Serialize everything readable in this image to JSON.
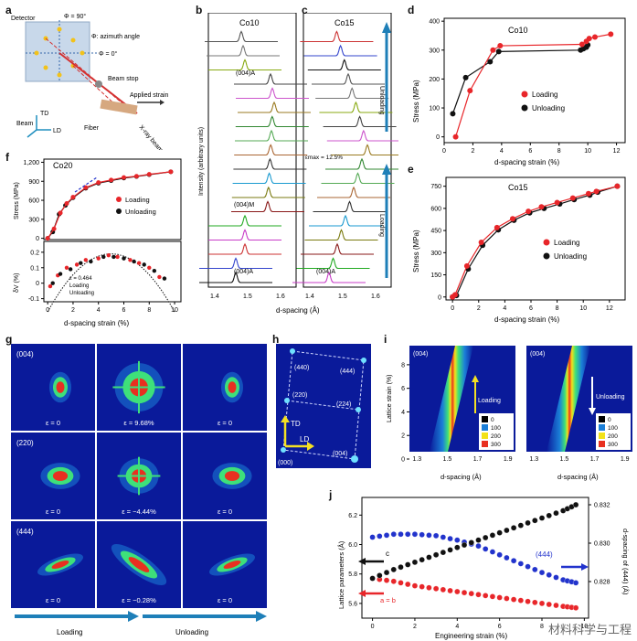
{
  "panel_labels": [
    "a",
    "b",
    "c",
    "d",
    "e",
    "f",
    "g",
    "h",
    "i",
    "j"
  ],
  "panel_a": {
    "detector": "Detector",
    "phi90": "Φ = 90°",
    "phi0": "Φ = 0°",
    "phi_desc": "Φ: azimuth angle",
    "beam_stop": "Beam stop",
    "applied_strain": "Applied strain",
    "xray": "X-ray beam",
    "fiber": "Fiber",
    "beam": "Beam",
    "td": "TD",
    "ld": "LD"
  },
  "panel_b": {
    "title": "Co10",
    "peak_top": "(004)A",
    "peak_mid": "(004)M",
    "peak_bot": "(004)A",
    "ylabel": "Intensity (arbitrary units)",
    "xticks": [
      "1.4",
      "1.5",
      "1.6"
    ]
  },
  "panel_c": {
    "title": "Co15",
    "emax": "εmax = 12.5%",
    "peak_bot": "(004)A",
    "unloading": "Unloading",
    "loading": "Loading",
    "xticks": [
      "1.4",
      "1.5",
      "1.6"
    ]
  },
  "bc_xlabel": "d-spacing (Å)",
  "panel_d": {
    "title": "Co10",
    "xlabel": "d-spacing strain (%)",
    "ylabel": "Stress (MPa)",
    "legend": [
      "Loading",
      "Unloading"
    ],
    "xticks": [
      "0",
      "2",
      "4",
      "6",
      "8",
      "10",
      "12"
    ],
    "yticks": [
      "0",
      "100",
      "200",
      "300",
      "400"
    ]
  },
  "panel_e": {
    "title": "Co15",
    "xlabel": "d-spacing strain (%)",
    "ylabel": "Stress (MPa)",
    "legend": [
      "Loading",
      "Unloading"
    ],
    "xticks": [
      "0",
      "2",
      "4",
      "6",
      "8",
      "10",
      "12"
    ],
    "yticks": [
      "0",
      "150",
      "300",
      "450",
      "600",
      "750"
    ]
  },
  "panel_f": {
    "title": "Co20",
    "ylabel_top": "Stress (MPa)",
    "ylabel_bot": "δV (%)",
    "xlabel": "d-spacing strain (%)",
    "legend": [
      "Loading",
      "Unloading"
    ],
    "legend_bot": [
      "ε = 0.464",
      "Loading",
      "Unloading"
    ],
    "yticks_top": [
      "0",
      "300",
      "600",
      "900",
      "1,200"
    ],
    "yticks_bot": [
      "-0.1",
      "0",
      "0.1",
      "0.2"
    ],
    "xticks": [
      "0",
      "2",
      "4",
      "6",
      "8",
      "10"
    ]
  },
  "panel_g": {
    "rows": [
      {
        "hkl": "(004)",
        "strains": [
          "ε = 0",
          "ε = 9.68%",
          "ε = 0"
        ]
      },
      {
        "hkl": "(220)",
        "strains": [
          "ε = 0",
          "ε = −4.44%",
          "ε = 0"
        ]
      },
      {
        "hkl": "(444)",
        "strains": [
          "ε = 0",
          "ε = −0.28%",
          "ε = 0"
        ]
      }
    ],
    "loading": "Loading",
    "unloading": "Unloading"
  },
  "panel_h": {
    "spots": [
      "(440)",
      "(444)",
      "(220)",
      "(224)",
      "(000)",
      "(004)"
    ],
    "td": "TD",
    "ld": "LD"
  },
  "panel_i": {
    "hkl": "(004)",
    "loading": "Loading",
    "unloading": "Unloading",
    "ylabel": "Lattice strain (%)",
    "xlabel": "d-spacing (Å)",
    "xticks": [
      "1.3",
      "1.5",
      "1.7",
      "1.9"
    ],
    "yticks": [
      "0",
      "2",
      "4",
      "6",
      "8"
    ],
    "colorbar": [
      "0",
      "100",
      "200",
      "300"
    ]
  },
  "panel_j": {
    "ylabel": "Lattice parameters (Å)",
    "ylabel_right": "d-spacing of (444) (Å)",
    "xlabel": "Engineering strain (%)",
    "c_label": "c",
    "ab_label": "a = b",
    "hkl": "(444)",
    "yticks": [
      "5.6",
      "5.8",
      "6.0",
      "6.2"
    ],
    "yticks_right": [
      "0.828",
      "0.830",
      "0.832"
    ],
    "xticks": [
      "0",
      "2",
      "4",
      "6",
      "8",
      "10"
    ]
  },
  "watermark": "材料科学与工程",
  "colors": {
    "loading": "#e8262a",
    "unloading": "#111111",
    "arrow": "#1e7fb8",
    "blue": "#2233cc"
  },
  "chart_data": [
    {
      "type": "line",
      "title": "Co10",
      "xlabel": "d-spacing strain (%)",
      "ylabel": "Stress (MPa)",
      "xlim": [
        0,
        12
      ],
      "ylim": [
        0,
        400
      ],
      "series": [
        {
          "name": "Loading",
          "x": [
            0.8,
            1.8,
            3.4,
            3.9,
            9.6,
            9.9,
            10.1,
            10.5,
            11.6
          ],
          "y": [
            0,
            160,
            300,
            315,
            320,
            330,
            340,
            345,
            355
          ]
        },
        {
          "name": "Unloading",
          "x": [
            0.6,
            1.5,
            3.2,
            3.8,
            9.5,
            9.7,
            9.9,
            10.0
          ],
          "y": [
            80,
            205,
            260,
            295,
            300,
            305,
            310,
            318
          ]
        }
      ]
    },
    {
      "type": "line",
      "title": "Co15",
      "xlabel": "d-spacing strain (%)",
      "ylabel": "Stress (MPa)",
      "xlim": [
        0,
        13
      ],
      "ylim": [
        0,
        800
      ],
      "series": [
        {
          "name": "Loading",
          "x": [
            0,
            0.2,
            1.1,
            2.2,
            3.4,
            4.6,
            5.8,
            6.8,
            8.0,
            9.2,
            10.4,
            11.0,
            12.6
          ],
          "y": [
            0,
            15,
            210,
            370,
            470,
            530,
            580,
            610,
            640,
            670,
            700,
            715,
            750
          ]
        },
        {
          "name": "Unloading",
          "x": [
            0,
            0.3,
            1.2,
            2.3,
            3.5,
            4.7,
            5.9,
            7.0,
            8.2,
            9.3,
            10.5,
            11.1,
            12.6
          ],
          "y": [
            0,
            10,
            190,
            350,
            455,
            520,
            570,
            600,
            630,
            660,
            690,
            710,
            750
          ]
        }
      ]
    },
    {
      "type": "line",
      "title": "Co20",
      "xlabel": "d-spacing strain (%)",
      "ylabel": "Stress (MPa)",
      "xlim": [
        0,
        10
      ],
      "ylim": [
        0,
        1200
      ],
      "series": [
        {
          "name": "Loading",
          "x": [
            0,
            0.5,
            1,
            1.5,
            2,
            3,
            4,
            5,
            6,
            7,
            8,
            9.7
          ],
          "y": [
            0,
            150,
            400,
            550,
            650,
            800,
            880,
            920,
            960,
            980,
            1010,
            1050
          ]
        },
        {
          "name": "Unloading",
          "x": [
            0,
            0.4,
            0.9,
            1.4,
            2,
            3,
            4,
            5,
            6,
            7,
            8,
            9.7
          ],
          "y": [
            0,
            100,
            380,
            520,
            640,
            790,
            870,
            910,
            950,
            975,
            1005,
            1050
          ]
        }
      ]
    },
    {
      "type": "line",
      "title": "Lattice parameters",
      "xlabel": "Engineering strain (%)",
      "ylabel": "Lattice parameters (Å)",
      "xlim": [
        0,
        10
      ],
      "ylim": [
        5.5,
        6.3
      ],
      "series": [
        {
          "name": "c",
          "x": [
            0,
            1,
            2,
            3,
            4,
            5,
            6,
            7,
            8,
            9,
            9.6
          ],
          "y": [
            5.77,
            5.83,
            5.88,
            5.93,
            5.98,
            6.03,
            6.08,
            6.13,
            6.18,
            6.23,
            6.27
          ]
        },
        {
          "name": "a = b",
          "x": [
            0,
            1,
            2,
            3,
            4,
            5,
            6,
            7,
            8,
            9,
            9.6
          ],
          "y": [
            5.77,
            5.75,
            5.72,
            5.7,
            5.68,
            5.66,
            5.64,
            5.62,
            5.6,
            5.58,
            5.57
          ]
        },
        {
          "name": "(444)",
          "x": [
            0,
            1,
            2,
            3,
            4,
            5,
            6,
            7,
            8,
            9,
            9.6
          ],
          "y": [
            6.05,
            6.07,
            6.07,
            6.06,
            6.03,
            5.99,
            5.93,
            5.87,
            5.81,
            5.76,
            5.74
          ]
        }
      ]
    }
  ]
}
